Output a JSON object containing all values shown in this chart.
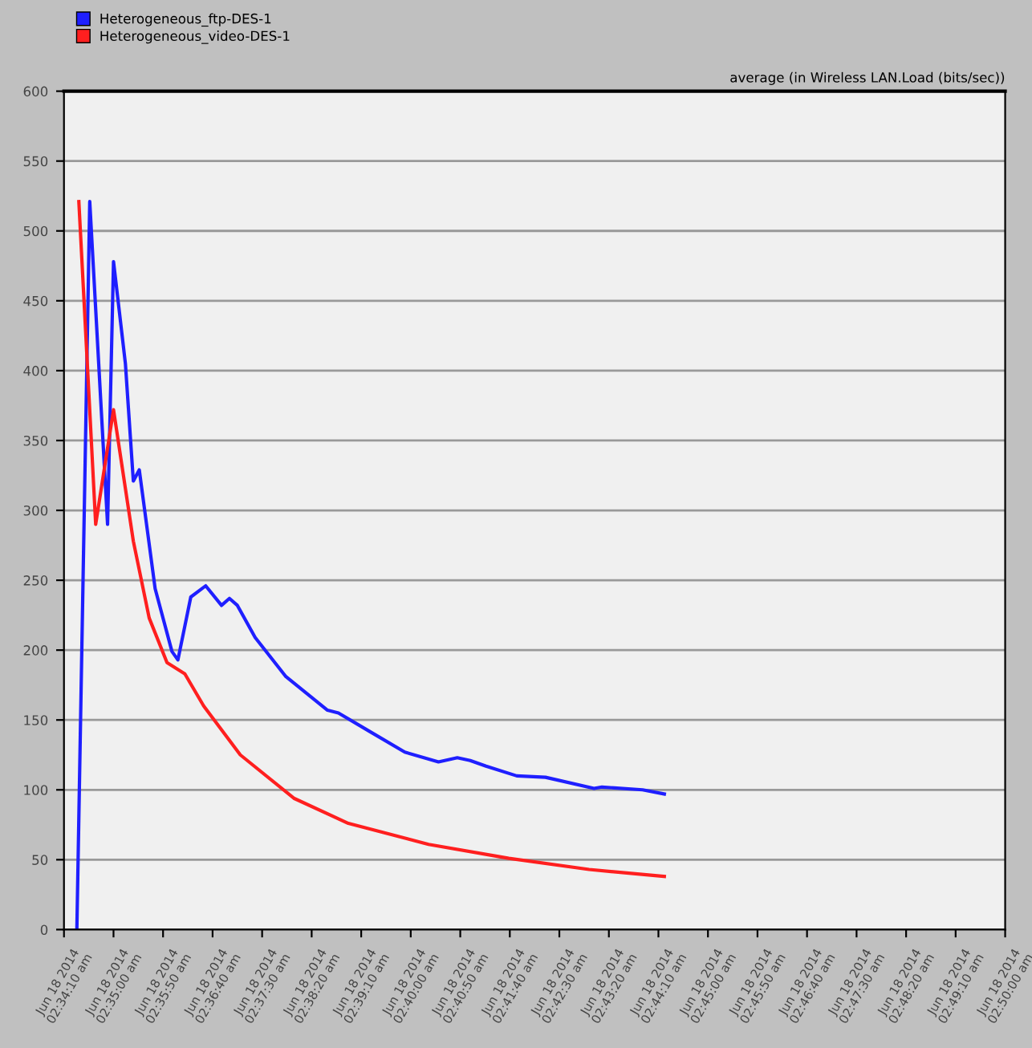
{
  "chart_data": {
    "type": "line",
    "title": "average (in Wireless LAN.Load (bits/sec))",
    "legend": "top left",
    "grid": "y",
    "marker": "none",
    "line_style": "solid",
    "xlim": [
      "2014-06-18T02:34:10",
      "2014-06-18T02:50:00"
    ],
    "ylim": [
      0,
      600
    ],
    "yticks": [
      0,
      50,
      100,
      150,
      200,
      250,
      300,
      350,
      400,
      450,
      500,
      550,
      600
    ],
    "xticks": [
      {
        "value": "2014-06-18T02:34:10",
        "label": "Jun 18 2014\n02:34:10 am"
      },
      {
        "value": "2014-06-18T02:35:00",
        "label": "Jun 18 2014\n02:35:00 am"
      },
      {
        "value": "2014-06-18T02:35:50",
        "label": "Jun 18 2014\n02:35:50 am"
      },
      {
        "value": "2014-06-18T02:36:40",
        "label": "Jun 18 2014\n02:36:40 am"
      },
      {
        "value": "2014-06-18T02:37:30",
        "label": "Jun 18 2014\n02:37:30 am"
      },
      {
        "value": "2014-06-18T02:38:20",
        "label": "Jun 18 2014\n02:38:20 am"
      },
      {
        "value": "2014-06-18T02:39:10",
        "label": "Jun 18 2014\n02:39:10 am"
      },
      {
        "value": "2014-06-18T02:40:00",
        "label": "Jun 18 2014\n02:40:00 am"
      },
      {
        "value": "2014-06-18T02:40:50",
        "label": "Jun 18 2014\n02:40:50 am"
      },
      {
        "value": "2014-06-18T02:41:40",
        "label": "Jun 18 2014\n02:41:40 am"
      },
      {
        "value": "2014-06-18T02:42:30",
        "label": "Jun 18 2014\n02:42:30 am"
      },
      {
        "value": "2014-06-18T02:43:20",
        "label": "Jun 18 2014\n02:43:20 am"
      },
      {
        "value": "2014-06-18T02:44:10",
        "label": "Jun 18 2014\n02:44:10 am"
      },
      {
        "value": "2014-06-18T02:45:00",
        "label": "Jun 18 2014\n02:45:00 am"
      },
      {
        "value": "2014-06-18T02:45:50",
        "label": "Jun 18 2014\n02:45:50 am"
      },
      {
        "value": "2014-06-18T02:46:40",
        "label": "Jun 18 2014\n02:46:40 am"
      },
      {
        "value": "2014-06-18T02:47:30",
        "label": "Jun 18 2014\n02:47:30 am"
      },
      {
        "value": "2014-06-18T02:48:20",
        "label": "Jun 18 2014\n02:48:20 am"
      },
      {
        "value": "2014-06-18T02:49:10",
        "label": "Jun 18 2014\n02:49:10 am"
      },
      {
        "value": "2014-06-18T02:50:00",
        "label": "Jun 18 2014\n02:50:00 am"
      }
    ],
    "series": [
      {
        "name": "Heterogeneous_ftp-DES-1",
        "color": "#1f1fff",
        "x": [
          "2014-06-18T02:34:23",
          "2014-06-18T02:34:36",
          "2014-06-18T02:34:54",
          "2014-06-18T02:35:00",
          "2014-06-18T02:35:12",
          "2014-06-18T02:35:20",
          "2014-06-18T02:35:26",
          "2014-06-18T02:35:42",
          "2014-06-18T02:35:59",
          "2014-06-18T02:36:05",
          "2014-06-18T02:36:18",
          "2014-06-18T02:36:33",
          "2014-06-18T02:36:49",
          "2014-06-18T02:36:57",
          "2014-06-18T02:37:05",
          "2014-06-18T02:37:23",
          "2014-06-18T02:37:54",
          "2014-06-18T02:38:36",
          "2014-06-18T02:38:47",
          "2014-06-18T02:39:18",
          "2014-06-18T02:39:54",
          "2014-06-18T02:40:28",
          "2014-06-18T02:40:47",
          "2014-06-18T02:41:00",
          "2014-06-18T02:41:16",
          "2014-06-18T02:41:47",
          "2014-06-18T02:42:16",
          "2014-06-18T02:43:05",
          "2014-06-18T02:43:13",
          "2014-06-18T02:43:54",
          "2014-06-18T02:44:16"
        ],
        "values": [
          0,
          521,
          290,
          478,
          405,
          321,
          329,
          244,
          199,
          193,
          238,
          246,
          232,
          237,
          232,
          209,
          181,
          157,
          155,
          142,
          127,
          120,
          123,
          121,
          117,
          110,
          109,
          101,
          102,
          100,
          97
        ]
      },
      {
        "name": "Heterogeneous_video-DES-1",
        "color": "#ff1f1f",
        "x": [
          "2014-06-18T02:34:25",
          "2014-06-18T02:34:42",
          "2014-06-18T02:35:00",
          "2014-06-18T02:35:20",
          "2014-06-18T02:35:36",
          "2014-06-18T02:35:54",
          "2014-06-18T02:36:12",
          "2014-06-18T02:36:31",
          "2014-06-18T02:37:08",
          "2014-06-18T02:38:02",
          "2014-06-18T02:38:57",
          "2014-06-18T02:40:18",
          "2014-06-18T02:41:39",
          "2014-06-18T02:43:00",
          "2014-06-18T02:44:16"
        ],
        "values": [
          521,
          290,
          372,
          278,
          223,
          191,
          183,
          160,
          125,
          94,
          76,
          61,
          51,
          43,
          38
        ]
      }
    ]
  }
}
